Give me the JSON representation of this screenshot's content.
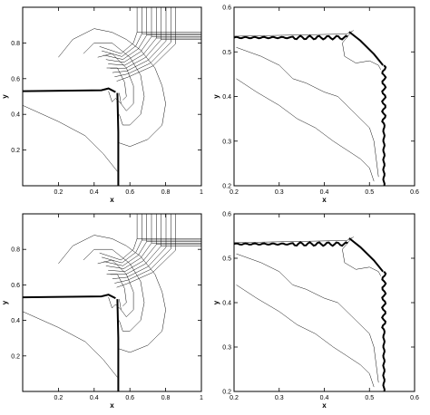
{
  "panels": [
    {
      "id": "top-left",
      "xlabel": "x",
      "ylabel": "y",
      "xlim": [
        0,
        1
      ],
      "ylim": [
        0,
        1
      ],
      "xticks": [
        "0.2",
        "0.4",
        "0.6",
        "0.8",
        "1"
      ],
      "yticks": [
        "0.2",
        "0.4",
        "0.6",
        "0.8"
      ]
    },
    {
      "id": "top-right",
      "xlabel": "x",
      "ylabel": "y",
      "xlim": [
        0.2,
        0.6
      ],
      "ylim": [
        0.2,
        0.6
      ],
      "xticks": [
        "0.2",
        "0.3",
        "0.4",
        "0.5",
        "0.6"
      ],
      "yticks": [
        "0.2",
        "0.3",
        "0.4",
        "0.5",
        "0.6"
      ]
    },
    {
      "id": "bottom-left",
      "xlabel": "x",
      "ylabel": "y",
      "xlim": [
        0,
        1
      ],
      "ylim": [
        0,
        1
      ],
      "xticks": [
        "0.2",
        "0.4",
        "0.6",
        "0.8",
        "1"
      ],
      "yticks": [
        "0.2",
        "0.4",
        "0.6",
        "0.8"
      ]
    },
    {
      "id": "bottom-right",
      "xlabel": "x",
      "ylabel": "y",
      "xlim": [
        0.2,
        0.6
      ],
      "ylim": [
        0.2,
        0.6
      ],
      "xticks": [
        "0.2",
        "0.3",
        "0.4",
        "0.5",
        "0.6"
      ],
      "yticks": [
        "0.2",
        "0.3",
        "0.4",
        "0.5",
        "0.6"
      ]
    }
  ],
  "chart_data": [
    {
      "type": "contour",
      "xlabel": "x",
      "ylabel": "y",
      "xlim": [
        0,
        1
      ],
      "ylim": [
        0,
        1
      ],
      "grid": false,
      "features": {
        "horizontal_shock_y": 0.53,
        "vertical_shock_x": 0.53
      }
    },
    {
      "type": "contour",
      "xlabel": "x",
      "ylabel": "y",
      "xlim": [
        0.2,
        0.6
      ],
      "ylim": [
        0.2,
        0.6
      ],
      "grid": false,
      "features": {
        "horizontal_shock_y": 0.53,
        "vertical_shock_x": 0.53
      }
    },
    {
      "type": "contour",
      "xlabel": "x",
      "ylabel": "y",
      "xlim": [
        0,
        1
      ],
      "ylim": [
        0,
        1
      ],
      "grid": false,
      "features": {
        "horizontal_shock_y": 0.53,
        "vertical_shock_x": 0.53
      }
    },
    {
      "type": "contour",
      "xlabel": "x",
      "ylabel": "y",
      "xlim": [
        0.2,
        0.6
      ],
      "ylim": [
        0.2,
        0.6
      ],
      "grid": false,
      "features": {
        "horizontal_shock_y": 0.53,
        "vertical_shock_x": 0.53
      }
    }
  ]
}
